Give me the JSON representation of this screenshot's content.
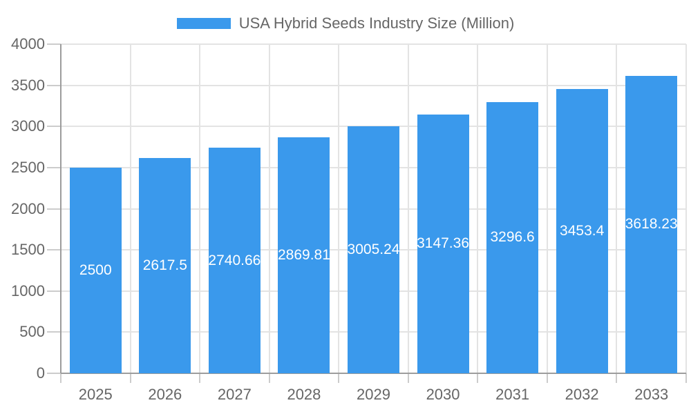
{
  "legend": {
    "label": "USA Hybrid Seeds Industry Size (Million)"
  },
  "chart_data": {
    "type": "bar",
    "title": "USA Hybrid Seeds Industry Size (Million)",
    "categories": [
      "2025",
      "2026",
      "2027",
      "2028",
      "2029",
      "2030",
      "2031",
      "2032",
      "2033"
    ],
    "values": [
      2500,
      2617.5,
      2740.66,
      2869.81,
      3005.24,
      3147.36,
      3296.6,
      3453.4,
      3618.23
    ],
    "series": [
      {
        "name": "USA Hybrid Seeds Industry Size (Million)",
        "values": [
          2500,
          2617.5,
          2740.66,
          2869.81,
          3005.24,
          3147.36,
          3296.6,
          3453.4,
          3618.23
        ]
      }
    ],
    "xlabel": "",
    "ylabel": "",
    "ylim": [
      0,
      4000
    ],
    "yticks": [
      0,
      500,
      1000,
      1500,
      2000,
      2500,
      3000,
      3500,
      4000
    ],
    "grid": true,
    "legend_position": "top",
    "bar_labels_position": "inside-center",
    "colors": {
      "bar": "#3A99EC",
      "bar_label": "#FFFFFF",
      "axis_text": "#666666",
      "grid_line": "#E3E3E3",
      "axis_line": "#9C9C9C",
      "tick": "#CCCCCC",
      "background": "#FFFFFF"
    }
  }
}
